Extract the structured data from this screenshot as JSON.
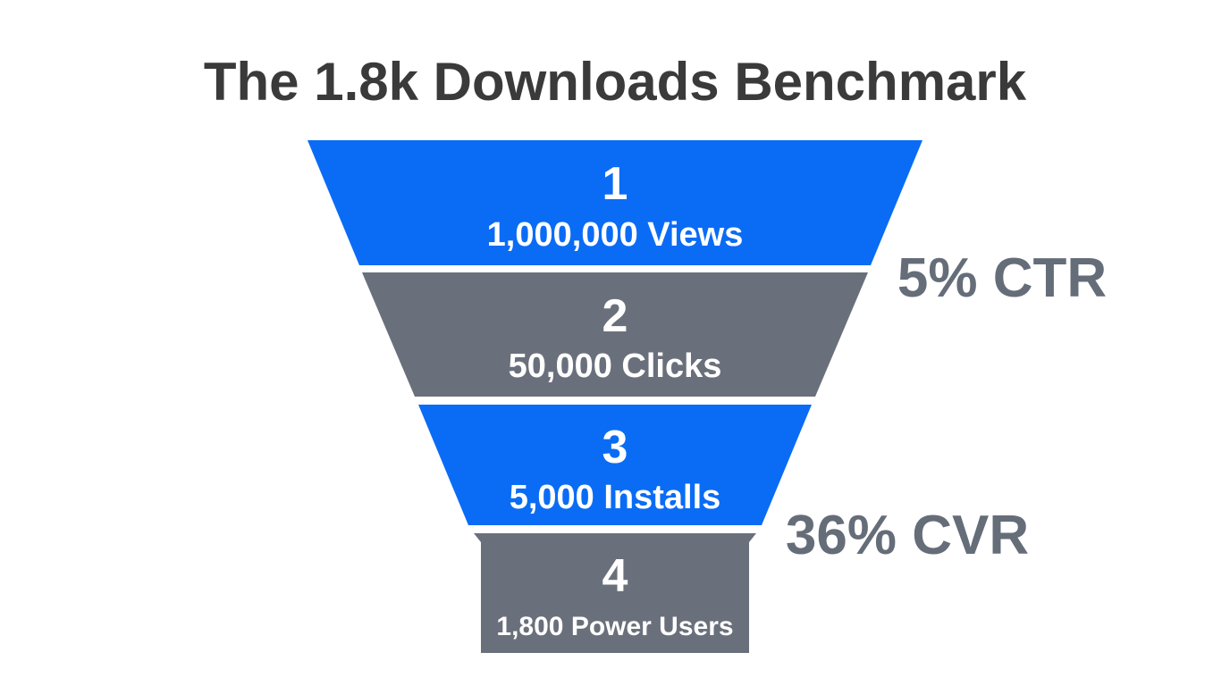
{
  "title": "The 1.8k Downloads Benchmark",
  "colors": {
    "blue": "#0a6cf5",
    "gray": "#6a707b",
    "title": "#3a3a3a",
    "rate": "#656d79"
  },
  "stages": [
    {
      "number": "1",
      "label": "1,000,000 Views",
      "color": "blue"
    },
    {
      "number": "2",
      "label": "50,000 Clicks",
      "color": "gray"
    },
    {
      "number": "3",
      "label": "5,000 Installs",
      "color": "blue"
    },
    {
      "number": "4",
      "label": "1,800 Power Users",
      "color": "gray"
    }
  ],
  "rates": [
    {
      "label": "5% CTR"
    },
    {
      "label": "36% CVR"
    }
  ]
}
